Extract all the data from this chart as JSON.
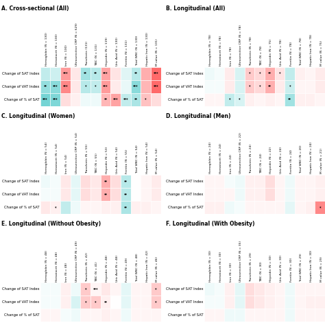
{
  "panels": [
    {
      "title": "A. Cross-sectional (All)",
      "col_labels": [
        "Hemoglobin (N = 130)",
        "Hematocrit (N = 130)",
        "Iron (N = 130)",
        "Ultrasensitive CRP (N = 629)",
        "Transferrin (131)",
        "TIBC (N = 131)",
        "Hepcidin (N = 119)",
        "Uric Acid (N = 130)",
        "Ferritin (N = 131)",
        "Total WBC (N = 130)",
        "Hepatic Iron (N = 130)",
        "M value (N = 131)"
      ],
      "row_labels": [
        "Change of SAT Index",
        "Change of VAT Index",
        "Change of % of SAT"
      ],
      "data": [
        [
          -0.28,
          -0.22,
          0.52,
          0.12,
          -0.42,
          -0.32,
          0.48,
          0.14,
          -0.14,
          -0.32,
          0.42,
          0.78
        ],
        [
          -0.48,
          -0.52,
          0.62,
          0.12,
          -0.32,
          -0.28,
          0.52,
          0.1,
          -0.1,
          -0.52,
          0.38,
          0.78
        ],
        [
          -0.62,
          -0.58,
          0.18,
          0.08,
          -0.08,
          -0.08,
          0.38,
          0.48,
          -0.28,
          -0.38,
          0.32,
          0.18
        ]
      ],
      "stars": [
        [
          "",
          "",
          "***",
          "",
          "**",
          "**",
          "***",
          "",
          "",
          "**",
          "",
          "***"
        ],
        [
          "**",
          "***",
          "***",
          "",
          "*",
          "*",
          "***",
          "",
          "",
          "***",
          "",
          "***"
        ],
        [
          "***",
          "***",
          "",
          "",
          "",
          "",
          "**",
          "***",
          "***",
          "**",
          "*",
          ""
        ]
      ]
    },
    {
      "title": "B. Longitudinal (All)",
      "col_labels": [
        "Hemoglobin (N = 78)",
        "Hematocrit (N = 78)",
        "Iron (N = 78)",
        "Ultrasensitive CRP (N = 78)",
        "Transferrin (N = 78)",
        "TIBC (N = 78)",
        "Hepcidin (N = 75)",
        "Uric Acid (N = 78)",
        "Ferritin (N = 78)",
        "Total WBC (N = 78)",
        "Hepatic Iron (N = 78)",
        "M value (N = 75)"
      ],
      "row_labels": [
        "Change of SAT Index",
        "Change of VAT Index",
        "Change of % of SAT"
      ],
      "data": [
        [
          -0.08,
          -0.05,
          0.1,
          -0.18,
          0.28,
          0.2,
          0.42,
          0.14,
          -0.28,
          0.08,
          0.05,
          0.1
        ],
        [
          -0.05,
          -0.05,
          0.1,
          -0.18,
          0.28,
          0.2,
          0.42,
          0.1,
          -0.24,
          0.05,
          0.05,
          0.1
        ],
        [
          0.05,
          0.05,
          -0.28,
          -0.18,
          0.08,
          0.05,
          0.08,
          0.05,
          -0.42,
          0.08,
          0.08,
          0.05
        ]
      ],
      "stars": [
        [
          "",
          "",
          "",
          "",
          "*",
          "*",
          "**",
          "*",
          "",
          "",
          "",
          ""
        ],
        [
          "",
          "",
          "",
          "",
          "*",
          "*",
          "**",
          "",
          "*",
          "",
          "",
          ""
        ],
        [
          "",
          "",
          "*",
          "*",
          "",
          "",
          "",
          "",
          "**",
          "",
          "",
          ""
        ]
      ]
    },
    {
      "title": "C. Longitudinal (Women)",
      "col_labels": [
        "Hemoglobin (N = 54)",
        "Hematocrit (N = 54)",
        "Iron (N = 54)",
        "Ultrasensitive CRP (N = 54)",
        "Transferrin (N = 55)",
        "TIBC (N = 55)",
        "Hepcidin (N = 53)",
        "Uric Acid (N = 54)",
        "Ferritin (N = 55)",
        "Total WBC (N = 54)",
        "Hepatic Iron (N = 54)",
        "M value (N = 54)"
      ],
      "row_labels": [
        "Change of SAT Index",
        "Change of VAT Index",
        "Change of % of SAT"
      ],
      "data": [
        [
          -0.08,
          -0.05,
          0.12,
          -0.12,
          0.18,
          0.12,
          0.42,
          0.18,
          -0.32,
          0.0,
          0.05,
          0.1
        ],
        [
          -0.05,
          -0.05,
          0.12,
          -0.12,
          0.18,
          0.12,
          0.42,
          0.18,
          -0.32,
          0.0,
          0.05,
          0.1
        ],
        [
          0.12,
          0.08,
          -0.28,
          -0.08,
          0.05,
          0.05,
          0.08,
          0.08,
          -0.38,
          0.08,
          0.08,
          0.05
        ]
      ],
      "stars": [
        [
          "",
          "",
          "",
          "",
          "",
          "",
          "**",
          "",
          "**",
          "",
          "",
          ""
        ],
        [
          "",
          "",
          "",
          "",
          "",
          "",
          "**",
          "",
          "**",
          "",
          "",
          ""
        ],
        [
          "",
          "*",
          "",
          "",
          "",
          "",
          "",
          "",
          "**",
          "",
          "",
          ""
        ]
      ]
    },
    {
      "title": "D. Longitudinal (Men)",
      "col_labels": [
        "Hemoglobin (N = 24)",
        "Hematocrit (N = 24)",
        "Iron (N = 24)",
        "Ultrasensitive CRP (N = 22)",
        "Transferrin (N = 24)",
        "TIBC (N = 24)",
        "Hepcidin (N = 22)",
        "Uric Acid (N = 24)",
        "Ferritin (N = 24)",
        "Total WBC (N = 20)",
        "Hepatic Iron (N = 24)",
        "M value (N = 21)"
      ],
      "row_labels": [
        "Change of SAT Index",
        "Change of VAT Index",
        "Change of % of SAT"
      ],
      "data": [
        [
          0.05,
          0.05,
          -0.05,
          -0.08,
          0.08,
          0.08,
          0.18,
          0.05,
          -0.08,
          0.05,
          0.05,
          0.08
        ],
        [
          0.05,
          0.05,
          0.05,
          -0.08,
          0.08,
          0.08,
          0.18,
          0.05,
          -0.08,
          0.05,
          0.05,
          0.08
        ],
        [
          0.08,
          0.08,
          -0.08,
          -0.05,
          0.05,
          0.05,
          0.05,
          0.05,
          -0.12,
          0.05,
          0.08,
          0.62
        ]
      ],
      "stars": [
        [
          "",
          "",
          "",
          "",
          "",
          "",
          "",
          "",
          "",
          "",
          "",
          ""
        ],
        [
          "",
          "",
          "",
          "",
          "",
          "",
          "",
          "",
          "",
          "",
          "",
          ""
        ],
        [
          "",
          "",
          "",
          "",
          "",
          "",
          "",
          "",
          "",
          "",
          "",
          "*"
        ]
      ]
    },
    {
      "title": "E. Longitudinal (Without Obesity)",
      "col_labels": [
        "Hemoglobin (N = 48)",
        "Hematocrit (N = 48)",
        "Iron (N = 48)",
        "Ultrasensitive CRP (N = 49)",
        "Transferrin (N = 42)",
        "TIBC (N = 41)",
        "Hepcidin (N = 48)",
        "Uric Acid (N = 48)",
        "Ferritin (N = 49)",
        "Total WBC (N = 48)",
        "Hepatic Iron (N = 42)",
        "M value (N = 46)"
      ],
      "row_labels": [
        "Change of SAT Index",
        "Change of VAT Index",
        "Change of % of SAT"
      ],
      "data": [
        [
          -0.05,
          -0.05,
          0.08,
          -0.08,
          0.28,
          0.05,
          0.12,
          0.05,
          -0.12,
          0.05,
          0.05,
          0.28
        ],
        [
          -0.05,
          -0.05,
          0.08,
          -0.18,
          0.28,
          0.28,
          0.08,
          0.0,
          -0.12,
          0.05,
          0.05,
          0.28
        ],
        [
          0.05,
          0.05,
          -0.05,
          -0.08,
          0.05,
          0.05,
          0.08,
          0.05,
          -0.08,
          0.05,
          0.05,
          0.05
        ]
      ],
      "stars": [
        [
          "",
          "",
          "",
          "",
          "*",
          "***",
          "",
          "",
          "",
          "",
          "",
          "*"
        ],
        [
          "",
          "",
          "",
          "",
          "*",
          "*",
          "**",
          "",
          "",
          "",
          "",
          "*"
        ],
        [
          "",
          "",
          "",
          "",
          "",
          "",
          "",
          "",
          "",
          "",
          "",
          ""
        ]
      ]
    },
    {
      "title": "F. Longitudinal (With Obesity)",
      "col_labels": [
        "Hemoglobin (N = 30)",
        "Hematocrit (N = 30)",
        "Iron (N = 30)",
        "Ultrasensitive CRP (N = 35)",
        "Transferrin (N = 29)",
        "TIBC (N = 30)",
        "Hepcidin (N = 30)",
        "Uric Acid (N = 30)",
        "Ferritin (N = 30)",
        "Total WBC (N = 29)",
        "Hepatic Iron (N = 30)",
        "M value (N = 29)"
      ],
      "row_labels": [
        "Change of SAT Index",
        "Change of VAT Index",
        "Change of % of SAT"
      ],
      "data": [
        [
          -0.08,
          -0.05,
          0.08,
          -0.12,
          0.18,
          0.12,
          0.08,
          0.05,
          -0.08,
          0.05,
          0.05,
          0.05
        ],
        [
          -0.05,
          -0.05,
          0.08,
          -0.12,
          0.18,
          0.12,
          0.08,
          0.05,
          -0.08,
          0.05,
          0.08,
          0.08
        ],
        [
          0.05,
          0.05,
          -0.08,
          -0.08,
          0.05,
          0.05,
          0.05,
          0.05,
          -0.08,
          0.05,
          0.05,
          0.05
        ]
      ],
      "stars": [
        [
          "",
          "",
          "",
          "",
          "",
          "",
          "",
          "",
          "",
          "",
          "",
          ""
        ],
        [
          "",
          "",
          "",
          "",
          "",
          "",
          "",
          "",
          "",
          "",
          "",
          ""
        ],
        [
          "",
          "",
          "",
          "",
          "",
          "",
          "",
          "",
          "",
          "",
          "",
          ""
        ]
      ]
    }
  ],
  "cmap_neg": "#4DC8C8",
  "cmap_zero": "#FFFFFF",
  "cmap_pos": "#FF6666",
  "vmin": -0.8,
  "vmax": 0.8,
  "star_fontsize": 3.5,
  "title_fontsize": 5.5,
  "col_label_fontsize": 3.2,
  "row_label_fontsize": 3.8,
  "background_color": "#FFFFFF",
  "fig_width": 4.74,
  "fig_height": 4.74,
  "fig_dpi": 100
}
